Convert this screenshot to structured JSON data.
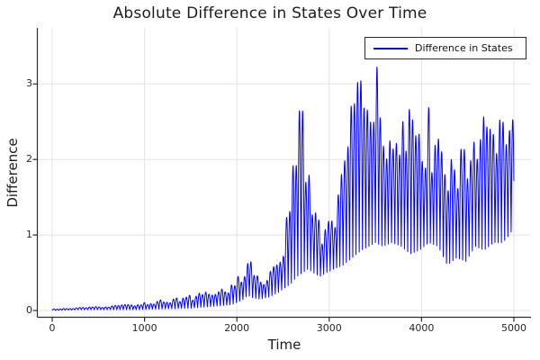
{
  "chart_data": {
    "type": "line",
    "title": "Absolute Difference in States Over Time",
    "xlabel": "Time",
    "ylabel": "Difference",
    "grid": true,
    "legend": {
      "position": "top-right"
    },
    "xticks": [
      0,
      1000,
      2000,
      3000,
      4000,
      5000
    ],
    "yticks": [
      0,
      1,
      2,
      3
    ],
    "xlim": [
      -160,
      5190
    ],
    "ylim": [
      -0.08,
      3.74
    ],
    "series": [
      {
        "name": "Difference in States",
        "color": "#0000ff",
        "description": "Rapidly oscillating absolute difference between two chaotic trajectories; values read from plot as min/max envelope keypoints below."
      }
    ],
    "envelope": {
      "t": [
        0,
        300,
        600,
        900,
        1200,
        1500,
        1800,
        1950,
        2060,
        2120,
        2170,
        2250,
        2350,
        2450,
        2520,
        2580,
        2650,
        2710,
        2770,
        2830,
        2900,
        2970,
        3050,
        3150,
        3250,
        3350,
        3430,
        3500,
        3580,
        3680,
        3780,
        3880,
        3980,
        4080,
        4180,
        4280,
        4380,
        4480,
        4580,
        4680,
        4780,
        4880,
        4950,
        5000
      ],
      "lo": [
        0.0,
        0.01,
        0.01,
        0.01,
        0.02,
        0.03,
        0.06,
        0.08,
        0.14,
        0.2,
        0.17,
        0.15,
        0.18,
        0.24,
        0.3,
        0.35,
        0.45,
        0.5,
        0.55,
        0.5,
        0.45,
        0.5,
        0.55,
        0.6,
        0.7,
        0.8,
        0.85,
        0.9,
        0.85,
        0.9,
        0.85,
        0.75,
        0.8,
        0.9,
        0.85,
        0.6,
        0.7,
        0.65,
        0.85,
        0.8,
        0.9,
        0.9,
        1.0,
        1.1
      ],
      "hi": [
        0.02,
        0.04,
        0.06,
        0.1,
        0.15,
        0.21,
        0.3,
        0.36,
        0.55,
        0.88,
        0.6,
        0.45,
        0.5,
        0.68,
        1.2,
        2.0,
        2.9,
        2.75,
        2.05,
        1.5,
        1.15,
        1.1,
        1.45,
        2.1,
        2.85,
        3.2,
        3.37,
        3.3,
        3.0,
        2.75,
        2.65,
        2.7,
        2.65,
        2.7,
        2.3,
        2.25,
        2.35,
        2.5,
        2.55,
        2.6,
        2.5,
        2.6,
        2.65,
        2.6
      ],
      "peak_value": 3.37,
      "peak_t": 3430
    },
    "oscillation": {
      "period": 70,
      "samples": 3000,
      "seed": 12345,
      "amp_base": 0.55,
      "amp_var": 0.45,
      "t_start": 0,
      "t_end": 5000
    },
    "colors": {
      "line": "#0000ff",
      "grid": "#e3e3e3",
      "spine": "#2b2b2b",
      "tick_text": "#262626",
      "title_text": "#1c1c1c"
    }
  }
}
